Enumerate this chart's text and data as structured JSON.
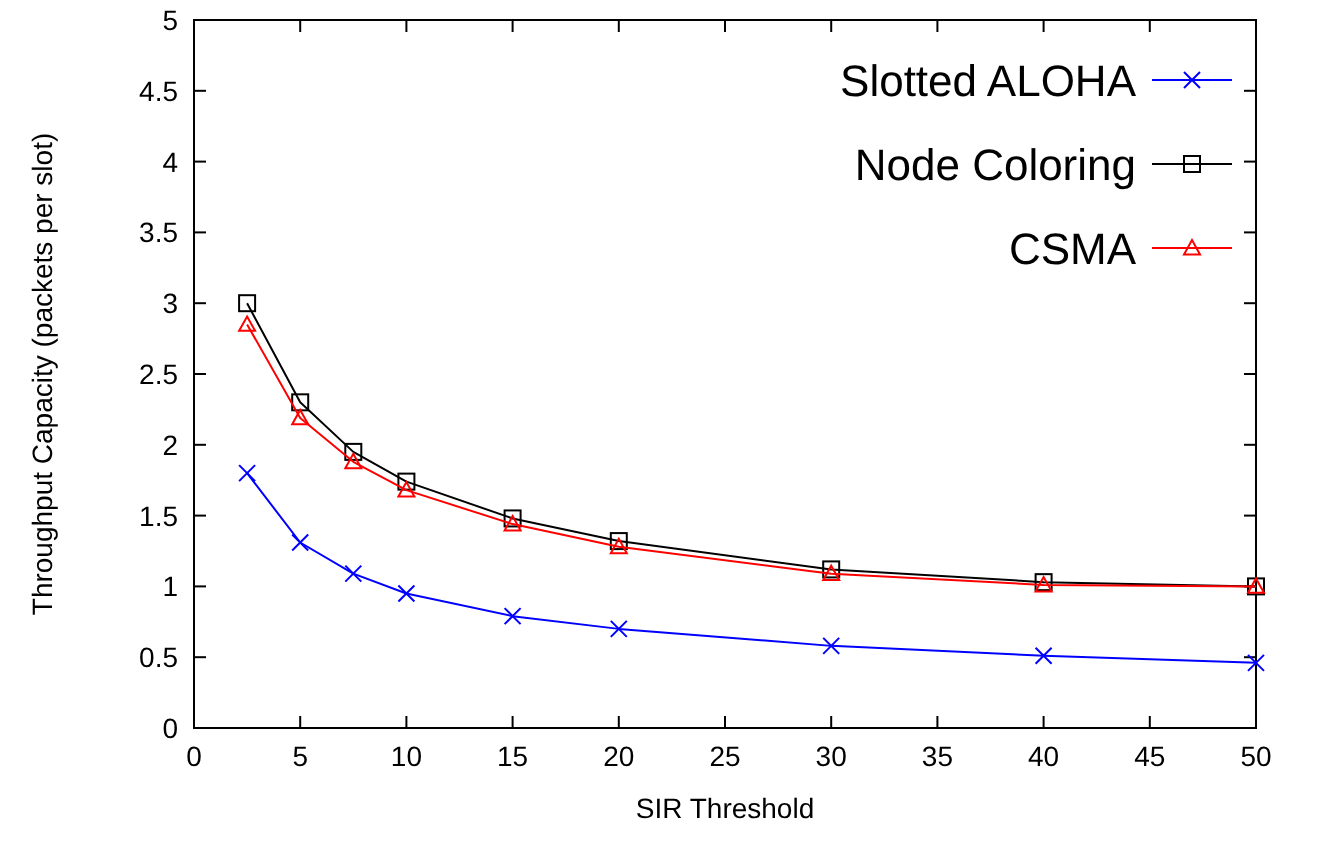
{
  "chart_data": {
    "type": "line",
    "xlabel": "SIR Threshold",
    "ylabel": "Throughput Capacity (packets per slot)",
    "x": [
      2.5,
      5,
      7.5,
      10,
      15,
      20,
      30,
      40,
      50
    ],
    "xlim": [
      0,
      50
    ],
    "xticks": [
      0,
      5,
      10,
      15,
      20,
      25,
      30,
      35,
      40,
      45,
      50
    ],
    "ylim": [
      0,
      5
    ],
    "yticks": [
      0,
      0.5,
      1,
      1.5,
      2,
      2.5,
      3,
      3.5,
      4,
      4.5,
      5
    ],
    "grid": false,
    "legend": "top right",
    "line_style": "solid",
    "series": [
      {
        "name": "Slotted ALOHA",
        "color": "#0000ff",
        "marker": "cross",
        "values": [
          1.8,
          1.31,
          1.09,
          0.95,
          0.79,
          0.7,
          0.58,
          0.51,
          0.46
        ]
      },
      {
        "name": "Node Coloring",
        "color": "#000000",
        "marker": "square",
        "values": [
          3.0,
          2.3,
          1.95,
          1.74,
          1.48,
          1.32,
          1.12,
          1.03,
          1.0
        ]
      },
      {
        "name": "CSMA",
        "color": "#ff0000",
        "marker": "triangle",
        "values": [
          2.85,
          2.19,
          1.88,
          1.68,
          1.44,
          1.28,
          1.09,
          1.01,
          1.0
        ]
      }
    ]
  }
}
